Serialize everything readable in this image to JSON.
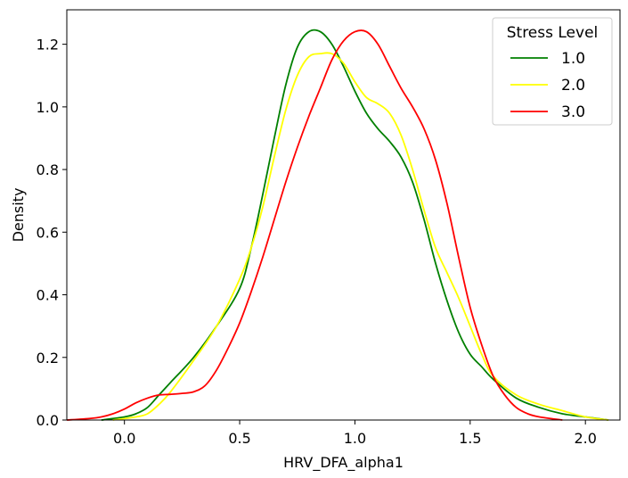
{
  "chart_data": {
    "type": "line",
    "title": "",
    "xlabel": "HRV_DFA_alpha1",
    "ylabel": "Density",
    "xlim": [
      -0.25,
      2.15
    ],
    "ylim": [
      0,
      1.31
    ],
    "xticks": [
      0.0,
      0.5,
      1.0,
      1.5,
      2.0
    ],
    "xtick_labels": [
      "0.0",
      "0.5",
      "1.0",
      "1.5",
      "2.0"
    ],
    "yticks": [
      0.0,
      0.2,
      0.4,
      0.6,
      0.8,
      1.0,
      1.2
    ],
    "ytick_labels": [
      "0.0",
      "0.2",
      "0.4",
      "0.6",
      "0.8",
      "1.0",
      "1.2"
    ],
    "grid": false,
    "legend": {
      "title": "Stress Level",
      "placement": "top-right"
    },
    "series": [
      {
        "name": "1.0",
        "color": "#008000",
        "x": [
          -0.1,
          0.0,
          0.05,
          0.1,
          0.15,
          0.2,
          0.3,
          0.4,
          0.5,
          0.55,
          0.6,
          0.65,
          0.7,
          0.75,
          0.8,
          0.85,
          0.9,
          0.95,
          1.0,
          1.05,
          1.1,
          1.15,
          1.2,
          1.25,
          1.3,
          1.35,
          1.4,
          1.45,
          1.5,
          1.55,
          1.6,
          1.7,
          1.8,
          1.9,
          2.0,
          2.1
        ],
        "y": [
          0.0,
          0.01,
          0.02,
          0.04,
          0.08,
          0.12,
          0.2,
          0.3,
          0.42,
          0.55,
          0.72,
          0.9,
          1.07,
          1.19,
          1.24,
          1.24,
          1.2,
          1.13,
          1.05,
          0.98,
          0.93,
          0.89,
          0.84,
          0.76,
          0.64,
          0.5,
          0.38,
          0.28,
          0.21,
          0.17,
          0.13,
          0.07,
          0.04,
          0.02,
          0.01,
          0.0
        ]
      },
      {
        "name": "2.0",
        "color": "#ffff00",
        "x": [
          -0.05,
          0.05,
          0.1,
          0.15,
          0.2,
          0.3,
          0.4,
          0.5,
          0.55,
          0.6,
          0.65,
          0.7,
          0.75,
          0.8,
          0.85,
          0.9,
          0.95,
          1.0,
          1.05,
          1.1,
          1.15,
          1.2,
          1.25,
          1.3,
          1.35,
          1.4,
          1.45,
          1.5,
          1.55,
          1.6,
          1.7,
          1.8,
          1.9,
          2.0,
          2.1
        ],
        "y": [
          0.0,
          0.01,
          0.02,
          0.05,
          0.09,
          0.19,
          0.3,
          0.45,
          0.55,
          0.68,
          0.84,
          0.99,
          1.1,
          1.16,
          1.17,
          1.17,
          1.14,
          1.08,
          1.03,
          1.01,
          0.98,
          0.91,
          0.8,
          0.67,
          0.55,
          0.47,
          0.39,
          0.3,
          0.21,
          0.14,
          0.08,
          0.05,
          0.03,
          0.01,
          0.0
        ]
      },
      {
        "name": "3.0",
        "color": "#ff0000",
        "x": [
          -0.25,
          -0.15,
          -0.1,
          -0.05,
          0.0,
          0.05,
          0.1,
          0.15,
          0.2,
          0.25,
          0.3,
          0.35,
          0.4,
          0.45,
          0.5,
          0.55,
          0.6,
          0.65,
          0.7,
          0.75,
          0.8,
          0.85,
          0.9,
          0.95,
          1.0,
          1.05,
          1.1,
          1.15,
          1.2,
          1.25,
          1.3,
          1.35,
          1.4,
          1.45,
          1.5,
          1.55,
          1.6,
          1.65,
          1.7,
          1.75,
          1.8,
          1.9
        ],
        "y": [
          0.0,
          0.005,
          0.01,
          0.02,
          0.035,
          0.055,
          0.07,
          0.08,
          0.082,
          0.085,
          0.09,
          0.11,
          0.16,
          0.23,
          0.31,
          0.41,
          0.52,
          0.64,
          0.76,
          0.87,
          0.97,
          1.06,
          1.15,
          1.21,
          1.24,
          1.24,
          1.2,
          1.13,
          1.06,
          1.0,
          0.93,
          0.83,
          0.69,
          0.52,
          0.36,
          0.24,
          0.14,
          0.08,
          0.04,
          0.02,
          0.01,
          0.0
        ]
      }
    ]
  }
}
